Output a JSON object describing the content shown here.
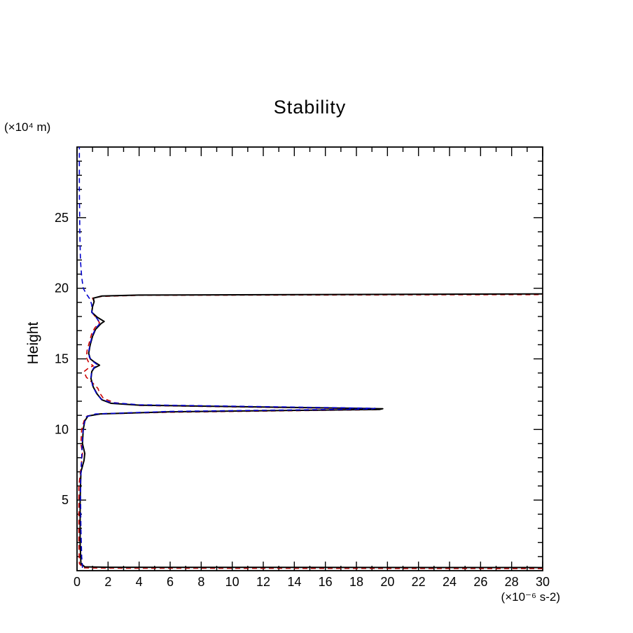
{
  "title": "Stability",
  "axes": {
    "y_label": "Height",
    "y_unit": "(×10⁴ m)",
    "x_unit": "(×10⁻⁶ s-2)"
  },
  "chart_data": {
    "type": "line",
    "title": "Stability",
    "xlabel": "(×10⁻⁶ s-2)",
    "ylabel": "Height (×10⁴ m)",
    "xlim": [
      0,
      30
    ],
    "ylim": [
      0,
      30
    ],
    "x_major_ticks": [
      0,
      2,
      4,
      6,
      8,
      10,
      12,
      14,
      16,
      18,
      20,
      22,
      24,
      26,
      28,
      30
    ],
    "x_minor_step": 1,
    "y_major_ticks": [
      5,
      10,
      15,
      20,
      25
    ],
    "y_minor_step": 1,
    "grid": false,
    "legend_position": "none",
    "frame_color": "#000000",
    "series": [
      {
        "name": "profile-red-dashed",
        "color": "#cc0000",
        "style": "dashed",
        "width": 1.6,
        "points": [
          [
            30,
            0.15
          ],
          [
            2,
            0.18
          ],
          [
            0.4,
            0.2
          ],
          [
            0.15,
            0.5
          ],
          [
            0.12,
            2
          ],
          [
            0.12,
            6
          ],
          [
            0.3,
            7.8
          ],
          [
            0.35,
            8.3
          ],
          [
            0.25,
            9
          ],
          [
            0.3,
            10
          ],
          [
            0.45,
            10.6
          ],
          [
            0.65,
            10.95
          ],
          [
            1.4,
            11.1
          ],
          [
            6,
            11.22
          ],
          [
            19.3,
            11.4
          ],
          [
            19.5,
            11.45
          ],
          [
            10,
            11.6
          ],
          [
            4,
            11.7
          ],
          [
            2.4,
            11.9
          ],
          [
            1.7,
            12.2
          ],
          [
            1.45,
            12.6
          ],
          [
            1.35,
            12.9
          ],
          [
            1.0,
            13.3
          ],
          [
            0.6,
            13.7
          ],
          [
            0.45,
            14.1
          ],
          [
            0.8,
            14.4
          ],
          [
            1.05,
            14.5
          ],
          [
            0.75,
            14.75
          ],
          [
            0.6,
            15.1
          ],
          [
            0.65,
            15.6
          ],
          [
            0.8,
            16.2
          ],
          [
            0.95,
            16.8
          ],
          [
            1.15,
            17.2
          ],
          [
            1.45,
            17.55
          ],
          [
            1.25,
            17.9
          ],
          [
            0.95,
            18.3
          ],
          [
            1.0,
            18.7
          ],
          [
            1.1,
            19.05
          ],
          [
            1.0,
            19.3
          ],
          [
            1.6,
            19.42
          ],
          [
            4,
            19.5
          ],
          [
            30,
            19.55
          ]
        ]
      },
      {
        "name": "profile-black-solid",
        "color": "#000000",
        "style": "solid",
        "width": 2,
        "points": [
          [
            30,
            0.22
          ],
          [
            2,
            0.24
          ],
          [
            0.5,
            0.27
          ],
          [
            0.25,
            0.5
          ],
          [
            0.2,
            2
          ],
          [
            0.2,
            5
          ],
          [
            0.25,
            7
          ],
          [
            0.45,
            7.8
          ],
          [
            0.5,
            8.3
          ],
          [
            0.35,
            9
          ],
          [
            0.4,
            10
          ],
          [
            0.5,
            10.6
          ],
          [
            0.7,
            10.95
          ],
          [
            1.5,
            11.1
          ],
          [
            6,
            11.25
          ],
          [
            19.5,
            11.42
          ],
          [
            19.7,
            11.47
          ],
          [
            10,
            11.62
          ],
          [
            4,
            11.72
          ],
          [
            2.2,
            11.85
          ],
          [
            1.6,
            12.1
          ],
          [
            1.3,
            12.5
          ],
          [
            1.05,
            13
          ],
          [
            0.9,
            13.6
          ],
          [
            0.95,
            14.1
          ],
          [
            1.1,
            14.35
          ],
          [
            1.45,
            14.55
          ],
          [
            1.15,
            14.75
          ],
          [
            0.85,
            15
          ],
          [
            0.75,
            15.4
          ],
          [
            0.85,
            16
          ],
          [
            1.0,
            16.6
          ],
          [
            1.2,
            17.1
          ],
          [
            1.55,
            17.5
          ],
          [
            1.75,
            17.65
          ],
          [
            1.3,
            17.95
          ],
          [
            0.95,
            18.3
          ],
          [
            1.0,
            18.7
          ],
          [
            1.1,
            19.05
          ],
          [
            1.05,
            19.3
          ],
          [
            1.6,
            19.45
          ],
          [
            4,
            19.52
          ],
          [
            30,
            19.6
          ]
        ]
      },
      {
        "name": "profile-blue-dashed",
        "color": "#0000cc",
        "style": "dashed",
        "width": 1.6,
        "points": [
          [
            0.35,
            0.2
          ],
          [
            0.3,
            1
          ],
          [
            0.25,
            3
          ],
          [
            0.22,
            6
          ],
          [
            0.3,
            8
          ],
          [
            0.35,
            9.5
          ],
          [
            0.45,
            10.4
          ],
          [
            0.6,
            10.9
          ],
          [
            1.2,
            11.1
          ],
          [
            6,
            11.28
          ],
          [
            19.0,
            11.45
          ],
          [
            19.2,
            11.5
          ],
          [
            10,
            11.65
          ],
          [
            4,
            11.75
          ],
          [
            2.2,
            11.9
          ],
          [
            1.55,
            12.15
          ],
          [
            1.25,
            12.55
          ],
          [
            1.0,
            13.1
          ],
          [
            0.9,
            13.7
          ],
          [
            0.95,
            14.15
          ],
          [
            1.1,
            14.4
          ],
          [
            1.35,
            14.55
          ],
          [
            1.05,
            14.8
          ],
          [
            0.8,
            15.1
          ],
          [
            0.75,
            15.5
          ],
          [
            0.85,
            16.1
          ],
          [
            1.0,
            16.7
          ],
          [
            1.2,
            17.15
          ],
          [
            1.5,
            17.55
          ],
          [
            1.25,
            17.9
          ],
          [
            0.95,
            18.3
          ],
          [
            0.95,
            18.8
          ],
          [
            0.85,
            19.2
          ],
          [
            0.6,
            19.6
          ],
          [
            0.4,
            20
          ],
          [
            0.3,
            20.8
          ],
          [
            0.22,
            22
          ],
          [
            0.18,
            24
          ],
          [
            0.15,
            27
          ],
          [
            0.15,
            30
          ]
        ]
      }
    ]
  }
}
